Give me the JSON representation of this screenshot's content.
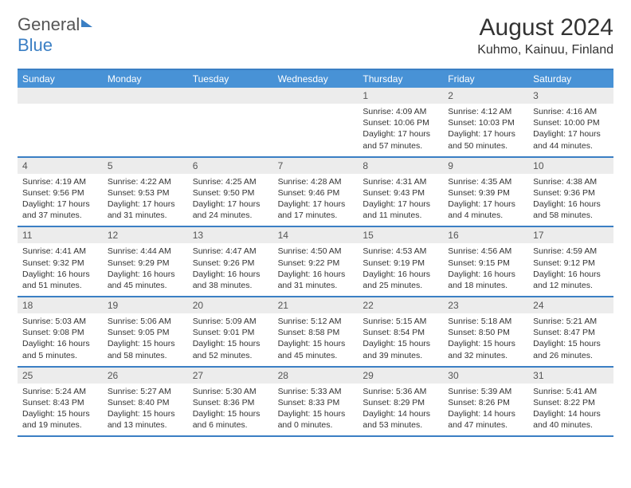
{
  "brand": {
    "name_a": "General",
    "name_b": "Blue"
  },
  "title": {
    "month": "August 2024",
    "location": "Kuhmo, Kainuu, Finland"
  },
  "colors": {
    "header_bg": "#4892d6",
    "header_text": "#ffffff",
    "rule": "#3b7fc4",
    "daynum_bg": "#ececec",
    "text": "#333333"
  },
  "dow": [
    "Sunday",
    "Monday",
    "Tuesday",
    "Wednesday",
    "Thursday",
    "Friday",
    "Saturday"
  ],
  "weeks": [
    [
      {
        "n": "",
        "sr": "",
        "ss": "",
        "dl": ""
      },
      {
        "n": "",
        "sr": "",
        "ss": "",
        "dl": ""
      },
      {
        "n": "",
        "sr": "",
        "ss": "",
        "dl": ""
      },
      {
        "n": "",
        "sr": "",
        "ss": "",
        "dl": ""
      },
      {
        "n": "1",
        "sr": "Sunrise: 4:09 AM",
        "ss": "Sunset: 10:06 PM",
        "dl": "Daylight: 17 hours and 57 minutes."
      },
      {
        "n": "2",
        "sr": "Sunrise: 4:12 AM",
        "ss": "Sunset: 10:03 PM",
        "dl": "Daylight: 17 hours and 50 minutes."
      },
      {
        "n": "3",
        "sr": "Sunrise: 4:16 AM",
        "ss": "Sunset: 10:00 PM",
        "dl": "Daylight: 17 hours and 44 minutes."
      }
    ],
    [
      {
        "n": "4",
        "sr": "Sunrise: 4:19 AM",
        "ss": "Sunset: 9:56 PM",
        "dl": "Daylight: 17 hours and 37 minutes."
      },
      {
        "n": "5",
        "sr": "Sunrise: 4:22 AM",
        "ss": "Sunset: 9:53 PM",
        "dl": "Daylight: 17 hours and 31 minutes."
      },
      {
        "n": "6",
        "sr": "Sunrise: 4:25 AM",
        "ss": "Sunset: 9:50 PM",
        "dl": "Daylight: 17 hours and 24 minutes."
      },
      {
        "n": "7",
        "sr": "Sunrise: 4:28 AM",
        "ss": "Sunset: 9:46 PM",
        "dl": "Daylight: 17 hours and 17 minutes."
      },
      {
        "n": "8",
        "sr": "Sunrise: 4:31 AM",
        "ss": "Sunset: 9:43 PM",
        "dl": "Daylight: 17 hours and 11 minutes."
      },
      {
        "n": "9",
        "sr": "Sunrise: 4:35 AM",
        "ss": "Sunset: 9:39 PM",
        "dl": "Daylight: 17 hours and 4 minutes."
      },
      {
        "n": "10",
        "sr": "Sunrise: 4:38 AM",
        "ss": "Sunset: 9:36 PM",
        "dl": "Daylight: 16 hours and 58 minutes."
      }
    ],
    [
      {
        "n": "11",
        "sr": "Sunrise: 4:41 AM",
        "ss": "Sunset: 9:32 PM",
        "dl": "Daylight: 16 hours and 51 minutes."
      },
      {
        "n": "12",
        "sr": "Sunrise: 4:44 AM",
        "ss": "Sunset: 9:29 PM",
        "dl": "Daylight: 16 hours and 45 minutes."
      },
      {
        "n": "13",
        "sr": "Sunrise: 4:47 AM",
        "ss": "Sunset: 9:26 PM",
        "dl": "Daylight: 16 hours and 38 minutes."
      },
      {
        "n": "14",
        "sr": "Sunrise: 4:50 AM",
        "ss": "Sunset: 9:22 PM",
        "dl": "Daylight: 16 hours and 31 minutes."
      },
      {
        "n": "15",
        "sr": "Sunrise: 4:53 AM",
        "ss": "Sunset: 9:19 PM",
        "dl": "Daylight: 16 hours and 25 minutes."
      },
      {
        "n": "16",
        "sr": "Sunrise: 4:56 AM",
        "ss": "Sunset: 9:15 PM",
        "dl": "Daylight: 16 hours and 18 minutes."
      },
      {
        "n": "17",
        "sr": "Sunrise: 4:59 AM",
        "ss": "Sunset: 9:12 PM",
        "dl": "Daylight: 16 hours and 12 minutes."
      }
    ],
    [
      {
        "n": "18",
        "sr": "Sunrise: 5:03 AM",
        "ss": "Sunset: 9:08 PM",
        "dl": "Daylight: 16 hours and 5 minutes."
      },
      {
        "n": "19",
        "sr": "Sunrise: 5:06 AM",
        "ss": "Sunset: 9:05 PM",
        "dl": "Daylight: 15 hours and 58 minutes."
      },
      {
        "n": "20",
        "sr": "Sunrise: 5:09 AM",
        "ss": "Sunset: 9:01 PM",
        "dl": "Daylight: 15 hours and 52 minutes."
      },
      {
        "n": "21",
        "sr": "Sunrise: 5:12 AM",
        "ss": "Sunset: 8:58 PM",
        "dl": "Daylight: 15 hours and 45 minutes."
      },
      {
        "n": "22",
        "sr": "Sunrise: 5:15 AM",
        "ss": "Sunset: 8:54 PM",
        "dl": "Daylight: 15 hours and 39 minutes."
      },
      {
        "n": "23",
        "sr": "Sunrise: 5:18 AM",
        "ss": "Sunset: 8:50 PM",
        "dl": "Daylight: 15 hours and 32 minutes."
      },
      {
        "n": "24",
        "sr": "Sunrise: 5:21 AM",
        "ss": "Sunset: 8:47 PM",
        "dl": "Daylight: 15 hours and 26 minutes."
      }
    ],
    [
      {
        "n": "25",
        "sr": "Sunrise: 5:24 AM",
        "ss": "Sunset: 8:43 PM",
        "dl": "Daylight: 15 hours and 19 minutes."
      },
      {
        "n": "26",
        "sr": "Sunrise: 5:27 AM",
        "ss": "Sunset: 8:40 PM",
        "dl": "Daylight: 15 hours and 13 minutes."
      },
      {
        "n": "27",
        "sr": "Sunrise: 5:30 AM",
        "ss": "Sunset: 8:36 PM",
        "dl": "Daylight: 15 hours and 6 minutes."
      },
      {
        "n": "28",
        "sr": "Sunrise: 5:33 AM",
        "ss": "Sunset: 8:33 PM",
        "dl": "Daylight: 15 hours and 0 minutes."
      },
      {
        "n": "29",
        "sr": "Sunrise: 5:36 AM",
        "ss": "Sunset: 8:29 PM",
        "dl": "Daylight: 14 hours and 53 minutes."
      },
      {
        "n": "30",
        "sr": "Sunrise: 5:39 AM",
        "ss": "Sunset: 8:26 PM",
        "dl": "Daylight: 14 hours and 47 minutes."
      },
      {
        "n": "31",
        "sr": "Sunrise: 5:41 AM",
        "ss": "Sunset: 8:22 PM",
        "dl": "Daylight: 14 hours and 40 minutes."
      }
    ]
  ]
}
